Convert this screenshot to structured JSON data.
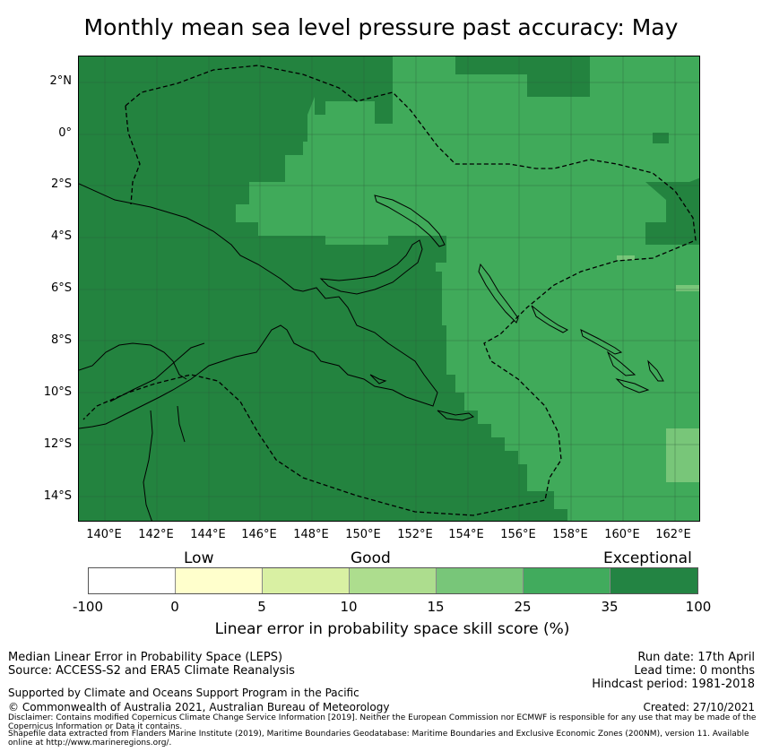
{
  "title": "Monthly mean sea level pressure past accuracy: May",
  "map": {
    "lat_labels": [
      "2°N",
      "0°",
      "2°S",
      "4°S",
      "6°S",
      "8°S",
      "10°S",
      "12°S",
      "14°S"
    ],
    "lon_labels": [
      "140°E",
      "142°E",
      "144°E",
      "146°E",
      "148°E",
      "150°E",
      "152°E",
      "154°E",
      "156°E",
      "158°E",
      "160°E",
      "162°E"
    ],
    "extent": {
      "lon": [
        139,
        163
      ],
      "lat": [
        -15,
        3
      ]
    },
    "colors": {
      "exceptional_dark": "#23833f",
      "good_high": "#40aa5a",
      "good_mid": "#78c679",
      "coastline": "#000000",
      "eez_boundary": "#000000"
    }
  },
  "legend": {
    "category_labels": [
      "Low",
      "Good",
      "Exceptional"
    ],
    "tick_labels": [
      "-100",
      "0",
      "5",
      "10",
      "15",
      "25",
      "35",
      "100"
    ],
    "colors": [
      "#ffffff",
      "#ffffcc",
      "#d9f0a3",
      "#addd8e",
      "#78c679",
      "#41ab5d",
      "#238443"
    ],
    "label": "Linear error in probability space skill score (%)"
  },
  "footer": {
    "method": "Median Linear Error in Probability Space (LEPS)",
    "source": "Source: ACCESS-S2 and ERA5 Climate Reanalysis",
    "run_date": "Run date: 17th April",
    "lead_time": "Lead time: 0 months",
    "hindcast": "Hindcast period: 1981-2018",
    "support": "Supported by Climate and Oceans Support Program in the Pacific",
    "copyright": "© Commonwealth of Australia 2021, Australian Bureau of Meteorology",
    "created": "Created: 27/10/2021",
    "disclaimer": "Disclaimer: Contains modified Copernicus Climate Change Service Information [2019]. Neither the European Commission nor ECMWF is responsible for any use that may be made of the Copernicus Information or Data it contains.",
    "shapefile": "Shapefile data extracted from Flanders Marine Institute (2019), Maritime Boundaries Geodatabase: Maritime Boundaries and Exclusive Economic Zones (200NM), version 11. Available online at http://www.marineregions.org/."
  }
}
